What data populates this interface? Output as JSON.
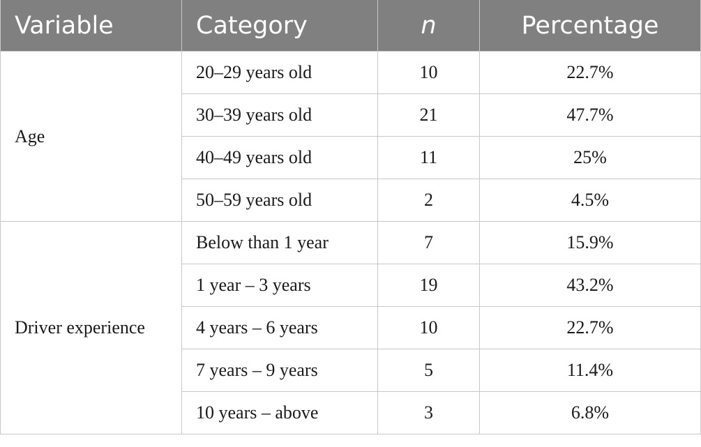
{
  "table": {
    "headers": [
      "Variable",
      "Category",
      "n",
      "Percentage"
    ],
    "groups": [
      {
        "variable": "Age",
        "rows": [
          {
            "category": "20–29 years old",
            "n": "10",
            "percentage": "22.7%"
          },
          {
            "category": "30–39 years old",
            "n": "21",
            "percentage": "47.7%"
          },
          {
            "category": "40–49 years old",
            "n": "11",
            "percentage": "25%"
          },
          {
            "category": "50–59 years old",
            "n": "2",
            "percentage": "4.5%"
          }
        ]
      },
      {
        "variable": "Driver experience",
        "rows": [
          {
            "category": "Below than 1 year",
            "n": "7",
            "percentage": "15.9%"
          },
          {
            "category": "1 year – 3 years",
            "n": "19",
            "percentage": "43.2%"
          },
          {
            "category": "4 years – 6 years",
            "n": "10",
            "percentage": "22.7%"
          },
          {
            "category": "7 years – 9 years",
            "n": "5",
            "percentage": "11.4%"
          },
          {
            "category": "10 years – above",
            "n": "3",
            "percentage": "6.8%"
          }
        ]
      }
    ]
  },
  "colors": {
    "header_background": "#808080",
    "header_text": "#ffffff",
    "grid_lines": "#c8c8c8"
  }
}
